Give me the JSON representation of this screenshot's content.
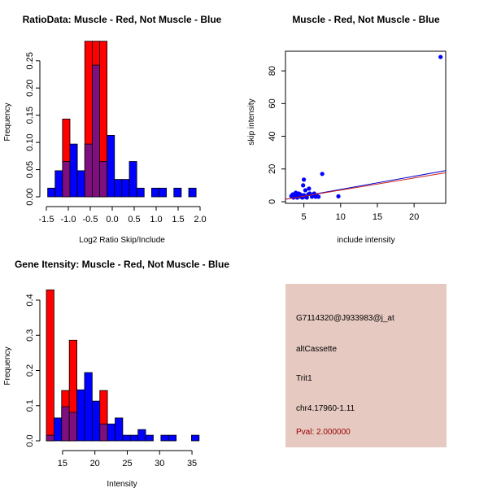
{
  "colors": {
    "red": "#ff0000",
    "blue": "#0000ff",
    "overlap": "#7f0f7f",
    "info_bg": "#e6c9c1",
    "pval": "#990000"
  },
  "chart_data": [
    {
      "type": "bar",
      "title": "RatioData: Muscle - Red, Not Muscle - Blue",
      "xlabel": "Log2 Ratio Skip/Include",
      "ylabel": "Frequency",
      "xlim": [
        -1.5,
        2.0
      ],
      "ylim": [
        0,
        0.29
      ],
      "xticks": [
        "-1.5",
        "-1.0",
        "-0.5",
        "0.0",
        "0.5",
        "1.0",
        "1.5",
        "2.0"
      ],
      "xtick_values": [
        -1.5,
        -1.0,
        -0.5,
        0.0,
        0.5,
        1.0,
        1.5,
        2.0
      ],
      "yticks": [
        "0.00",
        "0.05",
        "0.10",
        "0.15",
        "0.20",
        "0.25"
      ],
      "ytick_values": [
        0,
        0.05,
        0.1,
        0.15,
        0.2,
        0.25
      ],
      "bin_start": -1.47,
      "bin_width": 0.169,
      "series": [
        {
          "name": "Muscle",
          "color": "red",
          "values": [
            0,
            0,
            0.143,
            0,
            0,
            0.286,
            0.286,
            0.286,
            0,
            0,
            0,
            0,
            0,
            0,
            0,
            0,
            0,
            0,
            0,
            0
          ]
        },
        {
          "name": "Not Muscle",
          "color": "blue",
          "values": [
            0.016,
            0.048,
            0.065,
            0.097,
            0.048,
            0.097,
            0.242,
            0.065,
            0.113,
            0.032,
            0.032,
            0.065,
            0.016,
            0,
            0.016,
            0.016,
            0,
            0.016,
            0,
            0.016
          ]
        }
      ]
    },
    {
      "type": "scatter",
      "title": "Muscle - Red, Not Muscle - Blue",
      "xlabel": "include intensity",
      "ylabel": "skip intensity",
      "xlim": [
        2.5,
        24.3
      ],
      "ylim": [
        -1,
        92
      ],
      "xticks": [
        "5",
        "10",
        "15",
        "20"
      ],
      "xtick_values": [
        5,
        10,
        15,
        20
      ],
      "yticks": [
        "0",
        "20",
        "40",
        "60",
        "80"
      ],
      "ytick_values": [
        0,
        20,
        40,
        60,
        80
      ],
      "points": [
        [
          23.6,
          88.5
        ],
        [
          7.5,
          17
        ],
        [
          5.0,
          13.5
        ],
        [
          4.9,
          10
        ],
        [
          5.2,
          7
        ],
        [
          5.7,
          8
        ],
        [
          9.7,
          3.3
        ],
        [
          3.3,
          3.5
        ],
        [
          3.5,
          4.5
        ],
        [
          3.7,
          3
        ],
        [
          3.9,
          5.5
        ],
        [
          4.0,
          4
        ],
        [
          4.2,
          3
        ],
        [
          4.3,
          5
        ],
        [
          4.5,
          4.5
        ],
        [
          4.6,
          3
        ],
        [
          4.8,
          2.5
        ],
        [
          5.0,
          4
        ],
        [
          5.2,
          3
        ],
        [
          5.4,
          2.5
        ],
        [
          5.6,
          4.5
        ],
        [
          5.8,
          5
        ],
        [
          6.1,
          3
        ],
        [
          6.3,
          4
        ],
        [
          6.4,
          5
        ],
        [
          6.6,
          3
        ],
        [
          6.8,
          3.5
        ],
        [
          7.0,
          3
        ],
        [
          3.6,
          2.5
        ],
        [
          4.1,
          2.5
        ],
        [
          3.4,
          3
        ],
        [
          4.4,
          3.5
        ]
      ],
      "lines": [
        {
          "color": "blue",
          "from": [
            2.5,
            1.5
          ],
          "to": [
            24.3,
            19.0
          ]
        },
        {
          "color": "red",
          "from": [
            2.5,
            1.5
          ],
          "to": [
            24.3,
            17.7
          ]
        }
      ]
    },
    {
      "type": "bar",
      "title": "Gene Itensity: Muscle - Red, Not Muscle - Blue",
      "xlabel": "Intensity",
      "ylabel": "Frequency",
      "xlim": [
        12.5,
        36.5
      ],
      "ylim": [
        0,
        0.43
      ],
      "xticks": [
        "15",
        "20",
        "25",
        "30",
        "35"
      ],
      "xtick_values": [
        15,
        20,
        25,
        30,
        35
      ],
      "yticks": [
        "0.0",
        "0.1",
        "0.2",
        "0.3",
        "0.4"
      ],
      "ytick_values": [
        0,
        0.1,
        0.2,
        0.3,
        0.4
      ],
      "bin_start": 12.5,
      "bin_width": 1.18,
      "series": [
        {
          "name": "Muscle",
          "color": "red",
          "values": [
            0.429,
            0,
            0.143,
            0.286,
            0,
            0,
            0,
            0.143,
            0,
            0,
            0,
            0,
            0,
            0,
            0,
            0,
            0,
            0,
            0,
            0
          ]
        },
        {
          "name": "Not Muscle",
          "color": "blue",
          "values": [
            0.016,
            0.065,
            0.097,
            0.081,
            0.145,
            0.194,
            0.113,
            0.048,
            0.048,
            0.065,
            0.016,
            0.016,
            0.032,
            0.016,
            0,
            0.016,
            0.016,
            0,
            0,
            0.016
          ]
        }
      ]
    }
  ],
  "info": {
    "probe": "G7114320@J933983@j_at",
    "type": "altCassette",
    "gene": "Trit1",
    "location": "chr4.17960-1.11",
    "pval": "Pval: 2.000000"
  }
}
